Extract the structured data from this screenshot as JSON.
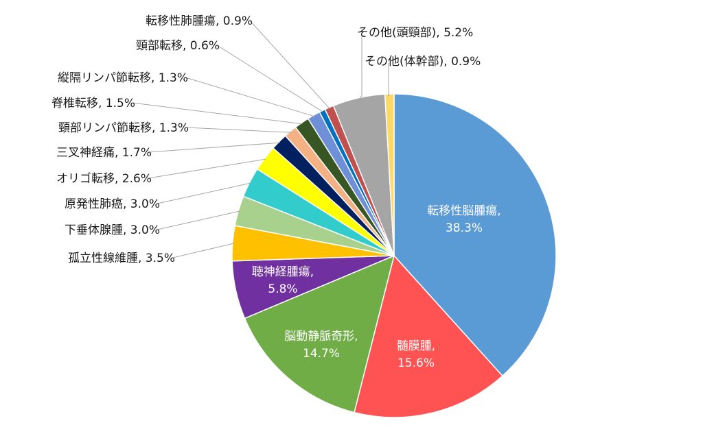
{
  "chart_data": {
    "type": "pie",
    "title": "",
    "start_angle_deg": 0,
    "direction": "clockwise",
    "slices": [
      {
        "label": "転移性脳腫瘍",
        "value": 38.3,
        "display": "38.3%",
        "color": "#5b9bd5"
      },
      {
        "label": "髄膜腫",
        "value": 15.6,
        "display": "15.6%",
        "color": "#ff5252"
      },
      {
        "label": "脳動静脈奇形",
        "value": 14.7,
        "display": "14.7%",
        "color": "#70ad47"
      },
      {
        "label": "聴神経腫瘍",
        "value": 5.8,
        "display": "5.8%",
        "color": "#7030a0"
      },
      {
        "label": "孤立性線維腫",
        "value": 3.5,
        "display": "3.5%",
        "color": "#ffc000"
      },
      {
        "label": "下垂体腺腫",
        "value": 3.0,
        "display": "3.0%",
        "color": "#a9d18e"
      },
      {
        "label": "原発性肺癌",
        "value": 3.0,
        "display": "3.0%",
        "color": "#33cccc"
      },
      {
        "label": "オリゴ転移",
        "value": 2.6,
        "display": "2.6%",
        "color": "#ffff00"
      },
      {
        "label": "三叉神経痛",
        "value": 1.7,
        "display": "1.7%",
        "color": "#002060"
      },
      {
        "label": "頸部リンパ節転移",
        "value": 1.3,
        "display": "1.3%",
        "color": "#f4b183"
      },
      {
        "label": "脊椎転移",
        "value": 1.5,
        "display": "1.5%",
        "color": "#375623"
      },
      {
        "label": "縦隔リンパ節転移",
        "value": 1.3,
        "display": "1.3%",
        "color": "#6f8fd6"
      },
      {
        "label": "頸部転移",
        "value": 0.6,
        "display": "0.6%",
        "color": "#0070c0"
      },
      {
        "label": "転移性肺腫瘍",
        "value": 0.9,
        "display": "0.9%",
        "color": "#c0504d"
      },
      {
        "label": "その他(頭頸部)",
        "value": 5.2,
        "display": "5.2%",
        "color": "#a5a5a5"
      },
      {
        "label": "その他(体幹部)",
        "value": 0.9,
        "display": "0.9%",
        "color": "#ffd966"
      }
    ]
  }
}
